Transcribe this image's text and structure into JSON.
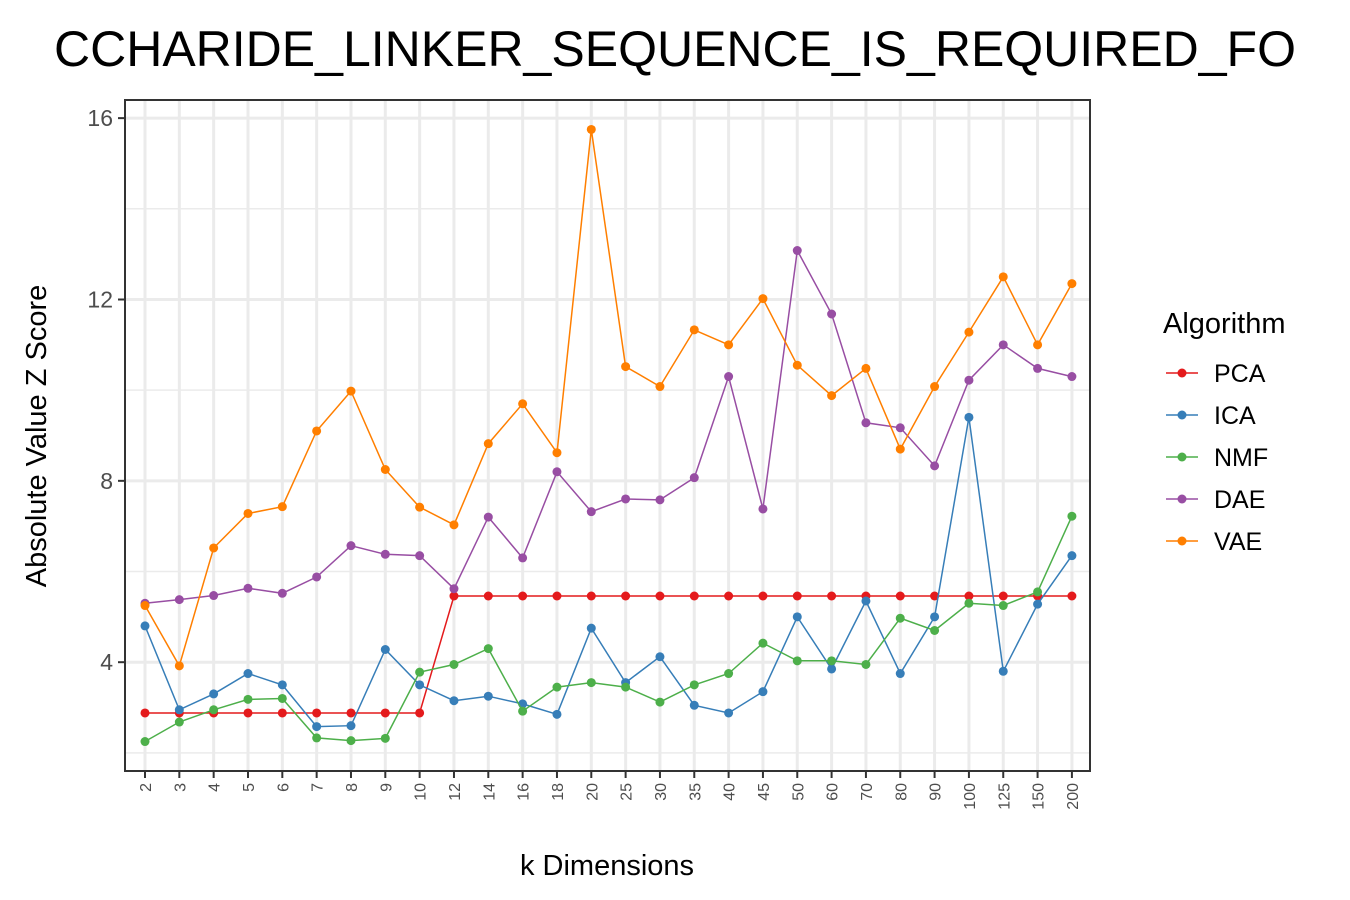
{
  "chart_data": {
    "type": "line",
    "title": "CCHARIDE_LINKER_SEQUENCE_IS_REQUIRED_FO",
    "xlabel": "k Dimensions",
    "ylabel": "Absolute Value Z Score",
    "categories": [
      "2",
      "3",
      "4",
      "5",
      "6",
      "7",
      "8",
      "9",
      "10",
      "12",
      "14",
      "16",
      "18",
      "20",
      "25",
      "30",
      "35",
      "40",
      "45",
      "50",
      "60",
      "70",
      "80",
      "90",
      "100",
      "125",
      "150",
      "200"
    ],
    "y_ticks": [
      4,
      8,
      12,
      16
    ],
    "ylim": [
      1.6,
      16.4
    ],
    "grid": true,
    "legend_title": "Algorithm",
    "legend_position": "right",
    "series": [
      {
        "name": "PCA",
        "color": "#e41a1c",
        "values": [
          2.88,
          2.88,
          2.88,
          2.88,
          2.88,
          2.88,
          2.88,
          2.88,
          2.88,
          5.46,
          5.46,
          5.46,
          5.46,
          5.46,
          5.46,
          5.46,
          5.46,
          5.46,
          5.46,
          5.46,
          5.46,
          5.46,
          5.46,
          5.46,
          5.46,
          5.46,
          5.46,
          5.46
        ]
      },
      {
        "name": "ICA",
        "color": "#377eb8",
        "values": [
          4.8,
          2.95,
          3.3,
          3.75,
          3.5,
          2.58,
          2.6,
          4.28,
          3.5,
          3.15,
          3.25,
          3.08,
          2.85,
          4.75,
          3.55,
          4.12,
          3.05,
          2.88,
          3.35,
          5.0,
          3.85,
          5.35,
          3.75,
          5.0,
          9.4,
          3.8,
          5.28,
          6.35
        ]
      },
      {
        "name": "NMF",
        "color": "#4daf4a",
        "values": [
          2.25,
          2.68,
          2.95,
          3.18,
          3.2,
          2.33,
          2.27,
          2.32,
          3.78,
          3.95,
          4.3,
          2.92,
          3.45,
          3.55,
          3.45,
          3.12,
          3.5,
          3.75,
          4.42,
          4.03,
          4.03,
          3.95,
          4.97,
          4.7,
          5.3,
          5.25,
          5.55,
          7.22
        ]
      },
      {
        "name": "DAE",
        "color": "#984ea3",
        "values": [
          5.3,
          5.38,
          5.47,
          5.63,
          5.52,
          5.88,
          6.57,
          6.38,
          6.35,
          5.62,
          7.2,
          6.3,
          8.2,
          7.32,
          7.6,
          7.58,
          8.07,
          10.3,
          7.38,
          13.08,
          11.68,
          9.28,
          9.17,
          8.33,
          10.22,
          11.0,
          10.48,
          10.3
        ]
      },
      {
        "name": "VAE",
        "color": "#ff7f00",
        "values": [
          5.25,
          3.92,
          6.52,
          7.28,
          7.43,
          9.1,
          9.98,
          8.25,
          7.42,
          7.03,
          8.82,
          9.7,
          8.62,
          15.75,
          10.52,
          10.08,
          11.33,
          11.0,
          12.02,
          10.55,
          9.88,
          10.48,
          8.7,
          10.08,
          11.28,
          12.5,
          11.0,
          12.35
        ]
      }
    ]
  }
}
